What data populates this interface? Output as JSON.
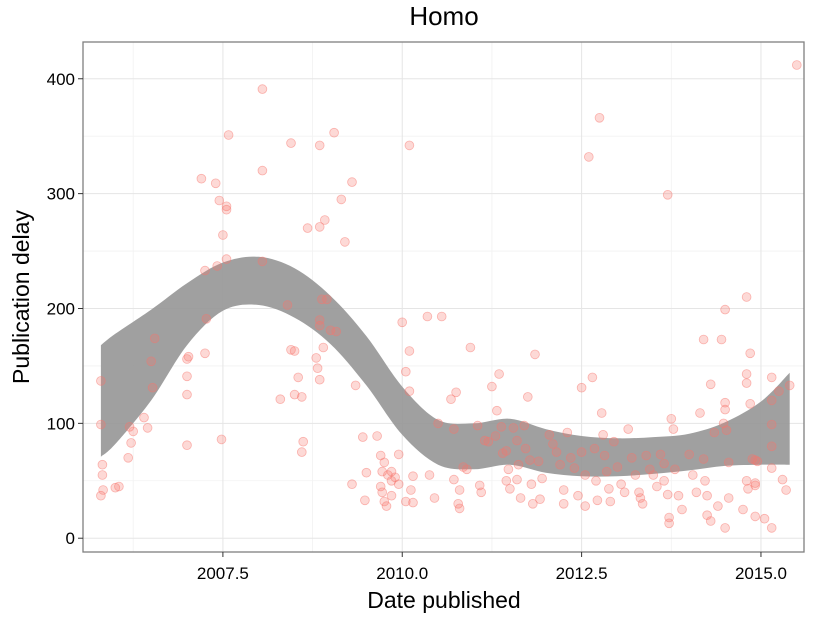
{
  "chart_data": {
    "type": "scatter",
    "title": "Homo",
    "xlabel": "Date published",
    "ylabel": "Publication delay",
    "xlim": [
      2005.55,
      2015.6
    ],
    "ylim": [
      -12,
      432
    ],
    "xticks": [
      2007.5,
      2010.0,
      2012.5,
      2015.0
    ],
    "xtick_labels": [
      "2007.5",
      "2010.0",
      "2012.5",
      "2015.0"
    ],
    "yticks": [
      0,
      100,
      200,
      300,
      400
    ],
    "ytick_labels": [
      "0",
      "100",
      "200",
      "300",
      "400"
    ],
    "grid": true,
    "legend": "none",
    "point_color": "#f8766d",
    "band_color": "#999999",
    "points": [
      [
        2005.8,
        137
      ],
      [
        2005.8,
        99
      ],
      [
        2005.82,
        64
      ],
      [
        2005.82,
        55
      ],
      [
        2005.83,
        42
      ],
      [
        2005.8,
        37
      ],
      [
        2006.0,
        44
      ],
      [
        2006.05,
        45
      ],
      [
        2006.2,
        97
      ],
      [
        2006.22,
        83
      ],
      [
        2006.18,
        70
      ],
      [
        2006.25,
        93
      ],
      [
        2006.4,
        105
      ],
      [
        2006.45,
        96
      ],
      [
        2006.5,
        154
      ],
      [
        2006.52,
        131
      ],
      [
        2006.55,
        174
      ],
      [
        2007.0,
        156
      ],
      [
        2007.02,
        158
      ],
      [
        2007.0,
        141
      ],
      [
        2007.0,
        125
      ],
      [
        2007.0,
        81
      ],
      [
        2007.2,
        313
      ],
      [
        2007.25,
        233
      ],
      [
        2007.27,
        191
      ],
      [
        2007.25,
        161
      ],
      [
        2007.4,
        309
      ],
      [
        2007.45,
        294
      ],
      [
        2007.42,
        237
      ],
      [
        2007.48,
        86
      ],
      [
        2007.5,
        264
      ],
      [
        2007.55,
        289
      ],
      [
        2007.55,
        286
      ],
      [
        2007.58,
        351
      ],
      [
        2007.55,
        243
      ],
      [
        2008.05,
        391
      ],
      [
        2008.05,
        320
      ],
      [
        2008.05,
        241
      ],
      [
        2008.3,
        121
      ],
      [
        2008.4,
        203
      ],
      [
        2008.45,
        344
      ],
      [
        2008.45,
        164
      ],
      [
        2008.5,
        163
      ],
      [
        2008.5,
        125
      ],
      [
        2008.6,
        123
      ],
      [
        2008.62,
        84
      ],
      [
        2008.6,
        75
      ],
      [
        2008.68,
        270
      ],
      [
        2008.55,
        140
      ],
      [
        2008.85,
        342
      ],
      [
        2008.85,
        271
      ],
      [
        2008.8,
        157
      ],
      [
        2008.82,
        148
      ],
      [
        2008.85,
        138
      ],
      [
        2008.88,
        208
      ],
      [
        2008.85,
        190
      ],
      [
        2008.85,
        185
      ],
      [
        2008.9,
        166
      ],
      [
        2008.92,
        277
      ],
      [
        2008.95,
        208
      ],
      [
        2009.05,
        353
      ],
      [
        2009.0,
        181
      ],
      [
        2009.08,
        180
      ],
      [
        2009.15,
        295
      ],
      [
        2009.2,
        258
      ],
      [
        2009.3,
        310
      ],
      [
        2009.35,
        133
      ],
      [
        2009.3,
        47
      ],
      [
        2009.45,
        88
      ],
      [
        2009.5,
        57
      ],
      [
        2009.48,
        33
      ],
      [
        2009.65,
        89
      ],
      [
        2009.7,
        72
      ],
      [
        2009.72,
        58
      ],
      [
        2009.75,
        66
      ],
      [
        2009.7,
        45
      ],
      [
        2009.72,
        40
      ],
      [
        2009.75,
        32
      ],
      [
        2009.78,
        28
      ],
      [
        2009.8,
        55
      ],
      [
        2009.85,
        58
      ],
      [
        2009.85,
        50
      ],
      [
        2009.85,
        37
      ],
      [
        2009.9,
        53
      ],
      [
        2009.95,
        47
      ],
      [
        2009.95,
        73
      ],
      [
        2010.0,
        188
      ],
      [
        2010.05,
        145
      ],
      [
        2010.05,
        32
      ],
      [
        2010.1,
        342
      ],
      [
        2010.1,
        163
      ],
      [
        2010.1,
        128
      ],
      [
        2010.12,
        42
      ],
      [
        2010.15,
        31
      ],
      [
        2010.15,
        54
      ],
      [
        2010.35,
        193
      ],
      [
        2010.38,
        55
      ],
      [
        2010.45,
        35
      ],
      [
        2010.55,
        193
      ],
      [
        2010.5,
        100
      ],
      [
        2010.68,
        121
      ],
      [
        2010.72,
        51
      ],
      [
        2010.75,
        127
      ],
      [
        2010.72,
        95
      ],
      [
        2010.8,
        42
      ],
      [
        2010.78,
        30
      ],
      [
        2010.8,
        26
      ],
      [
        2010.85,
        62
      ],
      [
        2010.9,
        60
      ],
      [
        2010.95,
        166
      ],
      [
        2011.05,
        98
      ],
      [
        2011.08,
        46
      ],
      [
        2011.1,
        40
      ],
      [
        2011.15,
        85
      ],
      [
        2011.2,
        84
      ],
      [
        2011.25,
        132
      ],
      [
        2011.3,
        89
      ],
      [
        2011.35,
        143
      ],
      [
        2011.32,
        111
      ],
      [
        2011.38,
        97
      ],
      [
        2011.4,
        74
      ],
      [
        2011.45,
        76
      ],
      [
        2011.48,
        60
      ],
      [
        2011.45,
        50
      ],
      [
        2011.5,
        43
      ],
      [
        2011.55,
        96
      ],
      [
        2011.6,
        85
      ],
      [
        2011.62,
        64
      ],
      [
        2011.6,
        51
      ],
      [
        2011.65,
        35
      ],
      [
        2011.7,
        98
      ],
      [
        2011.72,
        78
      ],
      [
        2011.75,
        123
      ],
      [
        2011.78,
        68
      ],
      [
        2011.8,
        47
      ],
      [
        2011.82,
        30
      ],
      [
        2011.85,
        160
      ],
      [
        2011.9,
        67
      ],
      [
        2011.95,
        52
      ],
      [
        2011.92,
        34
      ],
      [
        2012.05,
        90
      ],
      [
        2012.1,
        82
      ],
      [
        2012.15,
        75
      ],
      [
        2012.2,
        64
      ],
      [
        2012.25,
        42
      ],
      [
        2012.25,
        30
      ],
      [
        2012.3,
        92
      ],
      [
        2012.35,
        70
      ],
      [
        2012.4,
        61
      ],
      [
        2012.45,
        37
      ],
      [
        2012.5,
        131
      ],
      [
        2012.5,
        75
      ],
      [
        2012.55,
        55
      ],
      [
        2012.55,
        28
      ],
      [
        2012.6,
        332
      ],
      [
        2012.65,
        140
      ],
      [
        2012.68,
        78
      ],
      [
        2012.7,
        50
      ],
      [
        2012.72,
        33
      ],
      [
        2012.75,
        366
      ],
      [
        2012.78,
        109
      ],
      [
        2012.8,
        90
      ],
      [
        2012.82,
        72
      ],
      [
        2012.85,
        58
      ],
      [
        2012.88,
        43
      ],
      [
        2012.9,
        32
      ],
      [
        2012.95,
        84
      ],
      [
        2013.0,
        62
      ],
      [
        2013.05,
        47
      ],
      [
        2013.1,
        40
      ],
      [
        2013.15,
        95
      ],
      [
        2013.2,
        70
      ],
      [
        2013.25,
        55
      ],
      [
        2013.3,
        40
      ],
      [
        2013.32,
        35
      ],
      [
        2013.35,
        30
      ],
      [
        2013.4,
        72
      ],
      [
        2013.45,
        60
      ],
      [
        2013.5,
        55
      ],
      [
        2013.55,
        45
      ],
      [
        2013.6,
        73
      ],
      [
        2013.65,
        65
      ],
      [
        2013.65,
        50
      ],
      [
        2013.7,
        299
      ],
      [
        2013.7,
        38
      ],
      [
        2013.72,
        18
      ],
      [
        2013.72,
        13
      ],
      [
        2013.75,
        104
      ],
      [
        2013.78,
        95
      ],
      [
        2013.8,
        60
      ],
      [
        2013.85,
        37
      ],
      [
        2013.9,
        25
      ],
      [
        2014.0,
        73
      ],
      [
        2014.05,
        55
      ],
      [
        2014.1,
        40
      ],
      [
        2014.15,
        109
      ],
      [
        2014.2,
        173
      ],
      [
        2014.2,
        69
      ],
      [
        2014.22,
        50
      ],
      [
        2014.25,
        37
      ],
      [
        2014.25,
        20
      ],
      [
        2014.3,
        134
      ],
      [
        2014.35,
        92
      ],
      [
        2014.3,
        15
      ],
      [
        2014.4,
        28
      ],
      [
        2014.45,
        173
      ],
      [
        2014.5,
        199
      ],
      [
        2014.5,
        118
      ],
      [
        2014.5,
        112
      ],
      [
        2014.48,
        100
      ],
      [
        2014.52,
        94
      ],
      [
        2014.55,
        66
      ],
      [
        2014.55,
        35
      ],
      [
        2014.5,
        9
      ],
      [
        2014.75,
        25
      ],
      [
        2014.8,
        210
      ],
      [
        2014.8,
        143
      ],
      [
        2014.8,
        135
      ],
      [
        2014.8,
        50
      ],
      [
        2014.82,
        43
      ],
      [
        2014.85,
        161
      ],
      [
        2014.85,
        117
      ],
      [
        2014.88,
        69
      ],
      [
        2014.92,
        68
      ],
      [
        2014.95,
        67
      ],
      [
        2014.92,
        48
      ],
      [
        2014.92,
        46
      ],
      [
        2014.92,
        19
      ],
      [
        2015.05,
        17
      ],
      [
        2015.15,
        140
      ],
      [
        2015.15,
        120
      ],
      [
        2015.15,
        99
      ],
      [
        2015.15,
        80
      ],
      [
        2015.15,
        61
      ],
      [
        2015.15,
        9
      ],
      [
        2015.25,
        128
      ],
      [
        2015.3,
        51
      ],
      [
        2015.35,
        42
      ],
      [
        2015.4,
        133
      ],
      [
        2015.5,
        412
      ]
    ],
    "smooth_band": {
      "x": [
        2005.8,
        2006.0,
        2006.5,
        2007.0,
        2007.5,
        2008.0,
        2008.5,
        2009.0,
        2009.5,
        2010.0,
        2010.5,
        2011.0,
        2011.5,
        2012.0,
        2012.5,
        2013.0,
        2013.5,
        2014.0,
        2014.5,
        2015.0,
        2015.4
      ],
      "upper": [
        168,
        178,
        199,
        222,
        240,
        245,
        235,
        211,
        176,
        132,
        103,
        100,
        104,
        95,
        89,
        87,
        88,
        91,
        101,
        119,
        144
      ],
      "lower": [
        71,
        82,
        120,
        168,
        198,
        203,
        192,
        169,
        133,
        90,
        64,
        60,
        64,
        57,
        54,
        54,
        56,
        59,
        63,
        64,
        64
      ]
    }
  }
}
